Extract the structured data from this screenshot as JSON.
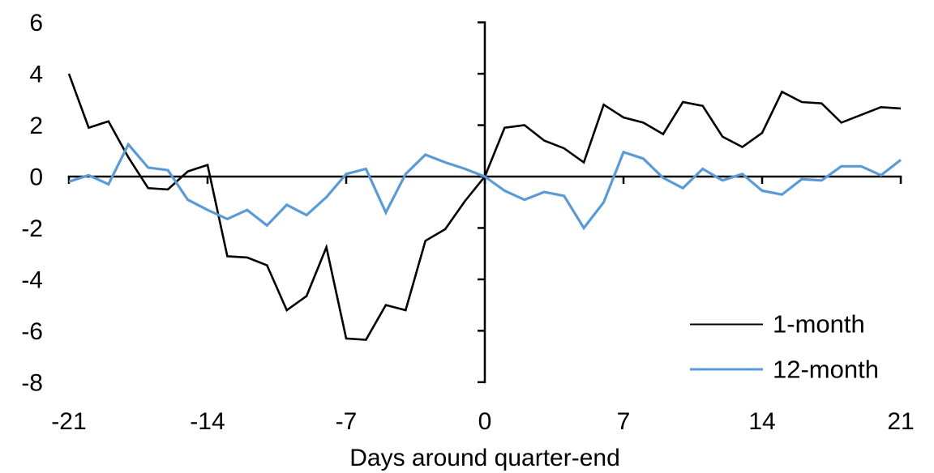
{
  "chart_data": {
    "type": "line",
    "title": "",
    "xlabel": "Days around quarter-end",
    "ylabel": "",
    "xlim": [
      -21,
      21
    ],
    "ylim": [
      -8,
      6
    ],
    "x_ticks": [
      -21,
      -14,
      -7,
      0,
      7,
      14,
      21
    ],
    "y_ticks": [
      6,
      4,
      2,
      0,
      -2,
      -4,
      -6,
      -8
    ],
    "grid": false,
    "legend_position": "lower right",
    "axis_color": "#000000",
    "x": [
      -21,
      -20,
      -19,
      -18,
      -17,
      -16,
      -15,
      -14,
      -13,
      -12,
      -11,
      -10,
      -9,
      -8,
      -7,
      -6,
      -5,
      -4,
      -3,
      -2,
      -1,
      0,
      1,
      2,
      3,
      4,
      5,
      6,
      7,
      8,
      9,
      10,
      11,
      12,
      13,
      14,
      15,
      16,
      17,
      18,
      19,
      20,
      21
    ],
    "series": [
      {
        "name": "1-month",
        "color": "#000000",
        "stroke_width": 2.6,
        "values": [
          4.0,
          1.9,
          2.15,
          0.75,
          -0.45,
          -0.5,
          0.2,
          0.45,
          -3.1,
          -3.15,
          -3.45,
          -5.2,
          -4.65,
          -2.75,
          -6.3,
          -6.35,
          -5.0,
          -5.2,
          -2.5,
          -2.05,
          -0.95,
          0,
          1.9,
          2.0,
          1.4,
          1.1,
          0.55,
          2.8,
          2.3,
          2.1,
          1.65,
          2.9,
          2.75,
          1.55,
          1.15,
          1.7,
          3.3,
          2.9,
          2.85,
          2.1,
          2.4,
          2.7,
          2.65
        ]
      },
      {
        "name": "12-month",
        "color": "#5B9BD5",
        "stroke_width": 3.2,
        "values": [
          -0.2,
          0.05,
          -0.3,
          1.25,
          0.35,
          0.25,
          -0.9,
          -1.3,
          -1.65,
          -1.3,
          -1.9,
          -1.1,
          -1.5,
          -0.8,
          0.1,
          0.3,
          -1.4,
          0.1,
          0.85,
          0.55,
          0.3,
          0,
          -0.55,
          -0.9,
          -0.6,
          -0.75,
          -2.0,
          -1.0,
          0.95,
          0.7,
          -0.05,
          -0.45,
          0.3,
          -0.15,
          0.1,
          -0.55,
          -0.7,
          -0.1,
          -0.15,
          0.4,
          0.4,
          0.05,
          0.65
        ]
      }
    ]
  }
}
